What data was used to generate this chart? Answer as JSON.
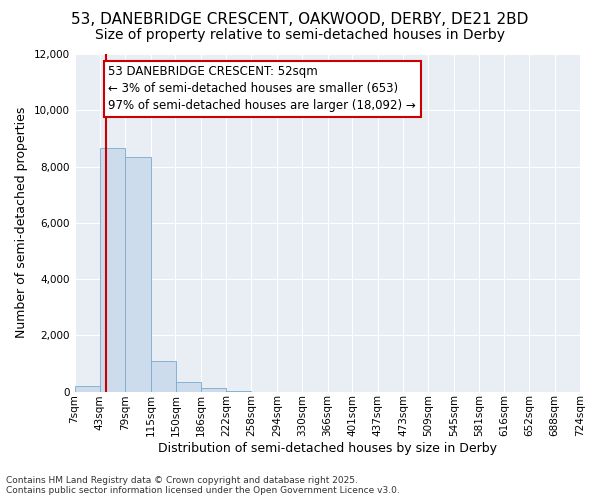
{
  "title": "53, DANEBRIDGE CRESCENT, OAKWOOD, DERBY, DE21 2BD",
  "subtitle": "Size of property relative to semi-detached houses in Derby",
  "xlabel": "Distribution of semi-detached houses by size in Derby",
  "ylabel": "Number of semi-detached properties",
  "footer_line1": "Contains HM Land Registry data © Crown copyright and database right 2025.",
  "footer_line2": "Contains public sector information licensed under the Open Government Licence v3.0.",
  "annotation_line1": "53 DANEBRIDGE CRESCENT: 52sqm",
  "annotation_line2": "← 3% of semi-detached houses are smaller (653)",
  "annotation_line3": "97% of semi-detached houses are larger (18,092) →",
  "property_size": 52,
  "bin_edges": [
    7,
    43,
    79,
    115,
    150,
    186,
    222,
    258,
    294,
    330,
    366,
    401,
    437,
    473,
    509,
    545,
    581,
    616,
    652,
    688,
    724
  ],
  "bin_labels": [
    "7sqm",
    "43sqm",
    "79sqm",
    "115sqm",
    "150sqm",
    "186sqm",
    "222sqm",
    "258sqm",
    "294sqm",
    "330sqm",
    "366sqm",
    "401sqm",
    "437sqm",
    "473sqm",
    "509sqm",
    "545sqm",
    "581sqm",
    "616sqm",
    "652sqm",
    "688sqm",
    "724sqm"
  ],
  "bar_heights": [
    200,
    8650,
    8350,
    1100,
    350,
    130,
    10,
    0,
    0,
    0,
    0,
    0,
    0,
    0,
    0,
    0,
    0,
    0,
    0,
    0
  ],
  "bar_color": "#ccdcec",
  "bar_edge_color": "#7aaacc",
  "highlight_line_color": "#cc0000",
  "ylim": [
    0,
    12000
  ],
  "yticks": [
    0,
    2000,
    4000,
    6000,
    8000,
    10000,
    12000
  ],
  "bg_color": "#ffffff",
  "plot_bg_color": "#e8eef4",
  "grid_color": "#ffffff",
  "annotation_box_edge_color": "#cc0000",
  "title_fontsize": 11,
  "subtitle_fontsize": 10,
  "axis_label_fontsize": 9,
  "tick_fontsize": 7.5,
  "annotation_fontsize": 8.5,
  "footer_fontsize": 6.5
}
